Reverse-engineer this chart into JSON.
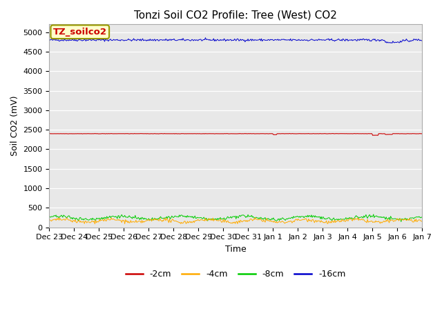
{
  "title": "Tonzi Soil CO2 Profile: Tree (West) CO2",
  "xlabel": "Time",
  "ylabel": "Soil CO2 (mV)",
  "ylim": [
    0,
    5200
  ],
  "yticks": [
    0,
    500,
    1000,
    1500,
    2000,
    2500,
    3000,
    3500,
    4000,
    4500,
    5000
  ],
  "fig_bg_color": "#ffffff",
  "plot_bg_color": "#e8e8e8",
  "grid_color": "#ffffff",
  "series": {
    "m2cm": {
      "color": "#cc0000",
      "value": 2400,
      "label": "-2cm"
    },
    "m4cm": {
      "color": "#ffaa00",
      "value": 185,
      "label": "-4cm"
    },
    "m8cm": {
      "color": "#00cc00",
      "value": 250,
      "label": "-8cm"
    },
    "m16cm": {
      "color": "#0000cc",
      "value": 4800,
      "label": "-16cm"
    }
  },
  "n_points": 500,
  "tick_labels": [
    "Dec 23",
    "Dec 24",
    "Dec 25",
    "Dec 26",
    "Dec 27",
    "Dec 28",
    "Dec 29",
    "Dec 30",
    "Dec 31",
    "Jan 1",
    "Jan 2",
    "Jan 3",
    "Jan 4",
    "Jan 5",
    "Jan 6",
    "Jan 7"
  ],
  "watermark_text": "TZ_soilco2",
  "watermark_color": "#cc0000",
  "watermark_bg": "#ffffcc",
  "watermark_border": "#999900",
  "title_fontsize": 11,
  "axis_fontsize": 9,
  "tick_fontsize": 8,
  "legend_fontsize": 9
}
